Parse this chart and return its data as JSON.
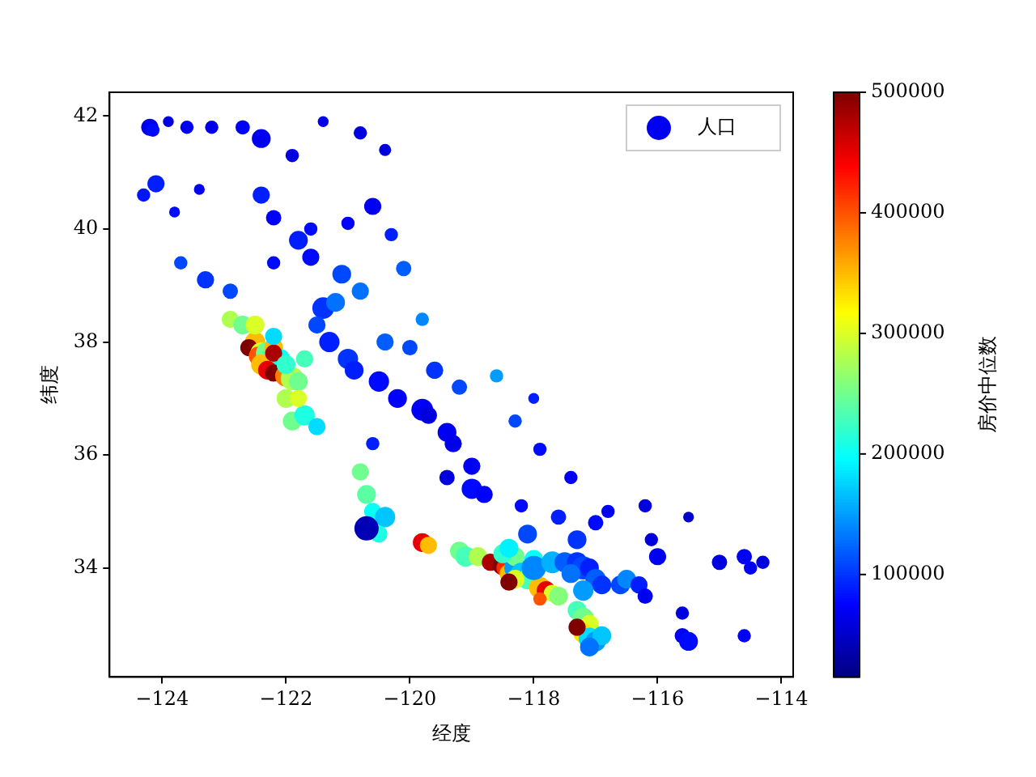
{
  "chart_data": {
    "type": "bubble",
    "xlabel": "经度",
    "ylabel": "纬度",
    "clabel": "房价中位数",
    "xlim": [
      -124.85,
      -113.81
    ],
    "xticks": [
      -124,
      -122,
      -120,
      -118,
      -116,
      -114
    ],
    "ylim": [
      32.07,
      42.42
    ],
    "yticks": [
      34,
      36,
      38,
      40,
      42
    ],
    "clim": [
      15000,
      500000
    ],
    "cticks": [
      100000,
      200000,
      300000,
      400000,
      500000
    ],
    "grid": false,
    "legend": "top right",
    "marker": "circle",
    "series": [
      {
        "name": "人口",
        "x": [
          -124.2,
          -124.15,
          -123.9,
          -123.6,
          -123.2,
          -122.7,
          -122.4,
          -121.9,
          -121.4,
          -120.8,
          -120.4,
          -124.3,
          -124.1,
          -123.8,
          -123.4,
          -122.4,
          -122.2,
          -121.8,
          -121.6,
          -121.0,
          -120.6,
          -120.3,
          -120.1,
          -123.7,
          -123.3,
          -122.9,
          -122.2,
          -121.6,
          -121.1,
          -120.8,
          -121.4,
          -121.2,
          -121.5,
          -121.3,
          -121.0,
          -120.9,
          -120.5,
          -120.2,
          -119.8,
          -119.7,
          -119.4,
          -119.3,
          -119.0,
          -119.0,
          -118.8,
          -119.4,
          -120.0,
          -120.4,
          -119.8,
          -119.6,
          -119.2,
          -118.6,
          -118.3,
          -118.0,
          -117.9,
          -117.4,
          -120.6,
          -122.9,
          -122.7,
          -122.5,
          -122.6,
          -122.4,
          -122.45,
          -122.3,
          -122.2,
          -122.1,
          -122.4,
          -122.3,
          -122.2,
          -122.0,
          -121.9,
          -121.8,
          -122.0,
          -122.2,
          -122.0,
          -121.7,
          -122.2,
          -122.5,
          -121.9,
          -121.7,
          -121.5,
          -121.8,
          -120.8,
          -120.7,
          -120.6,
          -120.4,
          -120.5,
          -120.7,
          -119.8,
          -119.7,
          -119.2,
          -119.1,
          -118.9,
          -118.7,
          -118.5,
          -118.45,
          -118.4,
          -118.3,
          -118.0,
          -118.3,
          -118.5,
          -118.2,
          -118.1,
          -118.3,
          -118.4,
          -117.9,
          -117.8,
          -117.7,
          -117.6,
          -117.9,
          -118.0,
          -118.4,
          -118.1,
          -117.7,
          -117.5,
          -117.3,
          -117.2,
          -117.4,
          -117.1,
          -117.0,
          -116.9,
          -117.2,
          -117.3,
          -117.2,
          -117.1,
          -117.2,
          -117.1,
          -117.0,
          -116.9,
          -117.1,
          -117.3,
          -116.6,
          -116.5,
          -116.3,
          -116.2,
          -116.0,
          -115.6,
          -115.5,
          -115.6,
          -115.0,
          -114.6,
          -114.5,
          -114.6,
          -114.3,
          -116.8,
          -117.3,
          -116.1,
          -115.5,
          -116.2,
          -117.6,
          -118.2,
          -117.0
        ],
        "values": [
          41.8,
          41.75,
          41.9,
          41.8,
          41.8,
          41.8,
          41.6,
          41.3,
          41.9,
          41.7,
          41.4,
          40.6,
          40.8,
          40.3,
          40.7,
          40.6,
          40.2,
          39.8,
          40.0,
          40.1,
          40.4,
          39.9,
          39.3,
          39.4,
          39.1,
          38.9,
          39.4,
          39.5,
          39.2,
          38.9,
          38.6,
          38.7,
          38.3,
          38.0,
          37.7,
          37.5,
          37.3,
          37.0,
          36.8,
          36.7,
          36.4,
          36.2,
          35.8,
          35.4,
          35.3,
          35.6,
          37.9,
          38.0,
          38.4,
          37.5,
          37.2,
          37.4,
          36.6,
          37.0,
          36.1,
          35.6,
          36.2,
          38.4,
          38.3,
          38.0,
          37.9,
          37.8,
          37.75,
          37.8,
          37.9,
          37.7,
          37.6,
          37.5,
          37.45,
          37.4,
          37.35,
          37.3,
          37.0,
          37.8,
          37.6,
          37.7,
          38.1,
          38.3,
          36.6,
          36.7,
          36.5,
          37.0,
          35.7,
          35.3,
          35.0,
          34.9,
          34.6,
          34.7,
          34.45,
          34.4,
          34.3,
          34.2,
          34.2,
          34.1,
          34.05,
          34.0,
          33.9,
          34.0,
          34.15,
          34.2,
          34.25,
          33.9,
          33.8,
          33.8,
          33.75,
          33.65,
          33.6,
          33.55,
          33.5,
          33.45,
          34.0,
          34.35,
          34.6,
          34.1,
          34.1,
          34.1,
          34.0,
          33.9,
          34.0,
          33.8,
          33.7,
          33.6,
          33.25,
          33.1,
          33.0,
          32.85,
          32.75,
          32.7,
          32.8,
          32.6,
          32.95,
          33.7,
          33.8,
          33.7,
          33.5,
          34.2,
          32.8,
          32.7,
          33.2,
          34.1,
          34.2,
          34.0,
          32.8,
          34.1,
          35.0,
          34.5,
          34.5,
          34.9,
          35.1,
          34.9,
          35.1,
          34.8
        ],
        "sizes": [
          0.5,
          0.3,
          0.2,
          0.3,
          0.3,
          0.35,
          0.6,
          0.3,
          0.2,
          0.3,
          0.25,
          0.3,
          0.5,
          0.2,
          0.2,
          0.5,
          0.4,
          0.6,
          0.3,
          0.3,
          0.5,
          0.3,
          0.4,
          0.3,
          0.5,
          0.4,
          0.3,
          0.5,
          0.6,
          0.5,
          0.8,
          0.6,
          0.5,
          0.7,
          0.7,
          0.6,
          0.7,
          0.6,
          0.8,
          0.5,
          0.6,
          0.5,
          0.5,
          0.7,
          0.5,
          0.4,
          0.4,
          0.5,
          0.3,
          0.5,
          0.4,
          0.3,
          0.3,
          0.2,
          0.3,
          0.3,
          0.3,
          0.5,
          0.6,
          0.7,
          0.5,
          0.8,
          0.6,
          0.9,
          0.6,
          0.7,
          0.7,
          0.6,
          0.5,
          0.8,
          0.9,
          0.6,
          0.6,
          0.5,
          0.6,
          0.5,
          0.5,
          0.6,
          0.6,
          0.7,
          0.5,
          0.5,
          0.5,
          0.6,
          0.5,
          0.7,
          0.5,
          1.0,
          0.6,
          0.5,
          0.6,
          0.7,
          0.6,
          0.5,
          0.7,
          0.6,
          0.6,
          0.8,
          0.6,
          0.6,
          0.6,
          0.8,
          0.7,
          0.6,
          0.5,
          0.8,
          0.6,
          0.5,
          0.6,
          0.3,
          1.0,
          0.6,
          0.6,
          0.8,
          0.7,
          0.7,
          0.9,
          0.6,
          0.6,
          0.7,
          0.6,
          0.7,
          0.6,
          0.8,
          0.6,
          0.7,
          0.8,
          0.7,
          0.6,
          0.6,
          0.5,
          0.6,
          0.6,
          0.5,
          0.4,
          0.5,
          0.4,
          0.6,
          0.3,
          0.4,
          0.4,
          0.3,
          0.3,
          0.3,
          0.3,
          0.6,
          0.3,
          0.2,
          0.3,
          0.4,
          0.3,
          0.4
        ],
        "cvalues": [
          70000,
          80000,
          60000,
          70000,
          65000,
          75000,
          70000,
          60000,
          65000,
          60000,
          60000,
          85000,
          90000,
          80000,
          70000,
          90000,
          75000,
          90000,
          80000,
          75000,
          70000,
          90000,
          120000,
          110000,
          100000,
          110000,
          80000,
          80000,
          110000,
          130000,
          100000,
          130000,
          110000,
          90000,
          100000,
          90000,
          80000,
          75000,
          70000,
          60000,
          70000,
          65000,
          70000,
          80000,
          75000,
          60000,
          110000,
          120000,
          140000,
          100000,
          110000,
          150000,
          110000,
          90000,
          80000,
          70000,
          90000,
          280000,
          250000,
          350000,
          500000,
          300000,
          400000,
          250000,
          350000,
          200000,
          350000,
          450000,
          500000,
          380000,
          280000,
          250000,
          280000,
          480000,
          220000,
          230000,
          180000,
          300000,
          250000,
          210000,
          180000,
          300000,
          250000,
          240000,
          200000,
          170000,
          210000,
          40000,
          450000,
          350000,
          250000,
          230000,
          280000,
          480000,
          500000,
          420000,
          350000,
          150000,
          200000,
          250000,
          220000,
          170000,
          230000,
          300000,
          500000,
          350000,
          450000,
          300000,
          260000,
          400000,
          140000,
          190000,
          110000,
          160000,
          120000,
          100000,
          110000,
          130000,
          90000,
          120000,
          100000,
          150000,
          230000,
          250000,
          300000,
          330000,
          180000,
          150000,
          170000,
          130000,
          500000,
          110000,
          140000,
          90000,
          70000,
          70000,
          70000,
          80000,
          60000,
          60000,
          70000,
          70000,
          70000,
          60000,
          70000,
          100000,
          60000,
          50000,
          60000,
          90000,
          80000,
          80000
        ]
      }
    ]
  }
}
